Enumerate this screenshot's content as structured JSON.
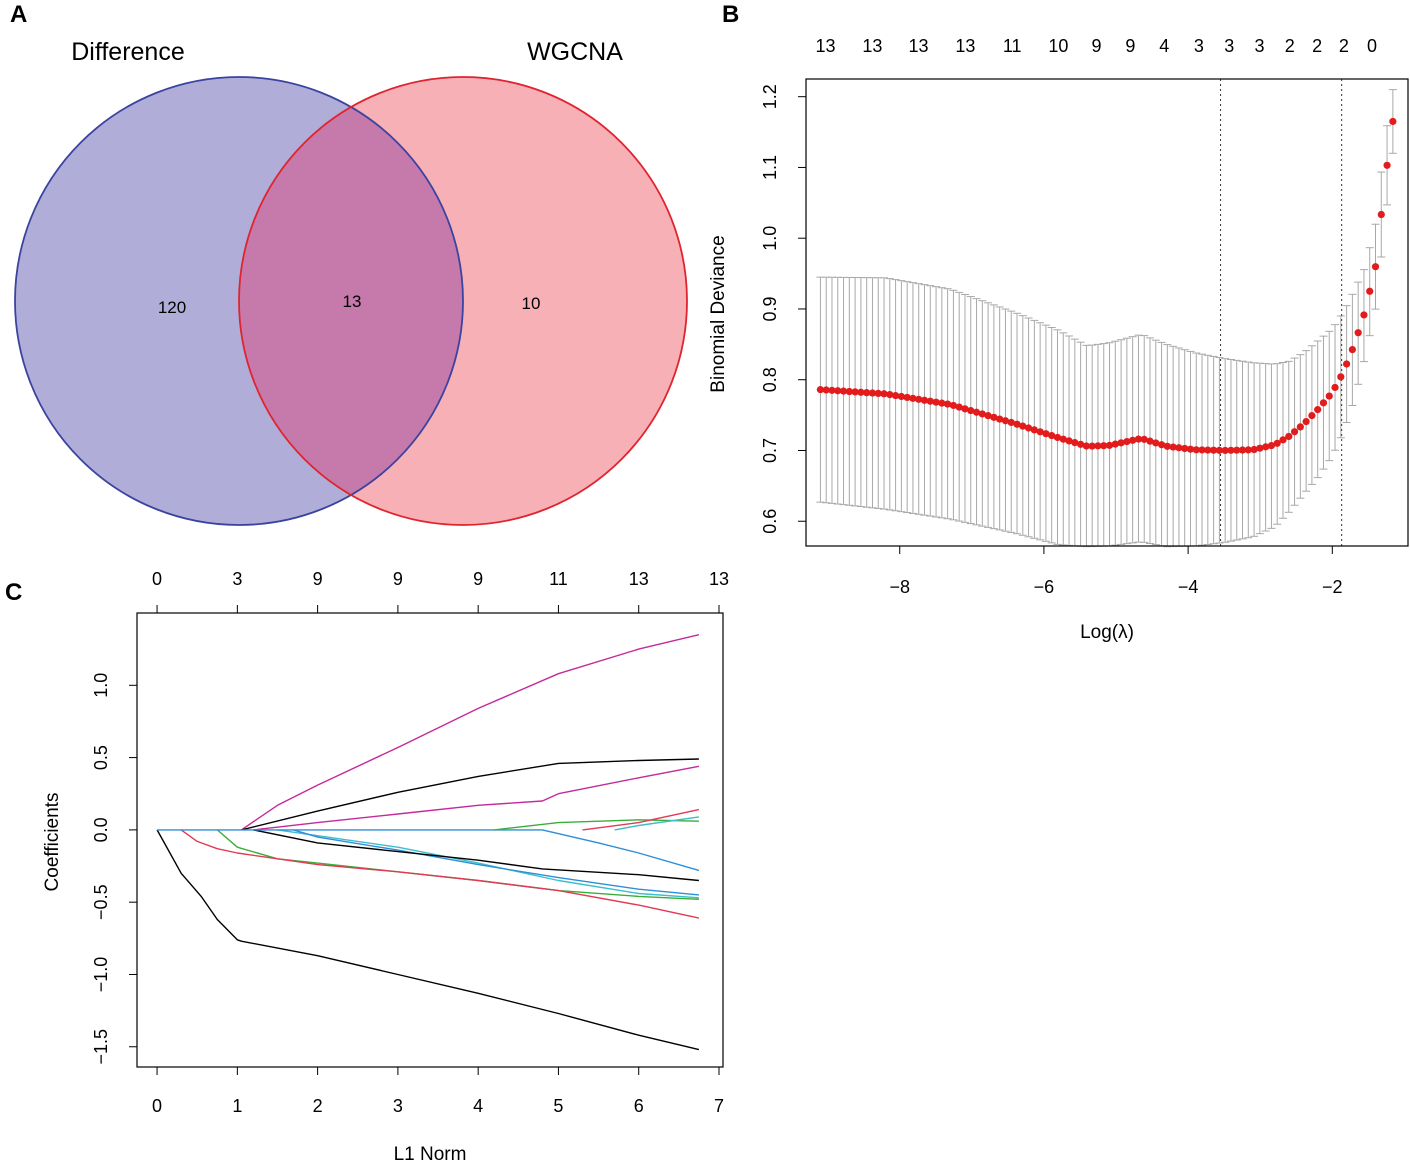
{
  "panels": {
    "a": "A",
    "b": "B",
    "c": "C"
  },
  "chart_data": [
    {
      "type": "venn",
      "sets": [
        {
          "name": "Difference",
          "color": "#8a88c6",
          "stroke": "#3b43a0"
        },
        {
          "name": "WGCNA",
          "color": "#f4868e",
          "stroke": "#e0242e"
        }
      ],
      "regions": {
        "only_a": "120",
        "both": "13",
        "only_b": "10"
      }
    },
    {
      "type": "scatter",
      "xlabel": "Log(λ)",
      "ylabel": "Binomial Deviance",
      "xlim": [
        -9.3,
        -0.95
      ],
      "ylim": [
        0.565,
        1.225
      ],
      "xticks": [
        -8,
        -6,
        -4,
        -2
      ],
      "xtick_labels": [
        "−8",
        "−6",
        "−4",
        "−2"
      ],
      "yticks": [
        0.6,
        0.7,
        0.8,
        0.9,
        1.0,
        1.1,
        1.2
      ],
      "ytick_labels": [
        "0.6",
        "0.7",
        "0.8",
        "0.9",
        "1.0",
        "1.1",
        "1.2"
      ],
      "top_axis": {
        "positions": [
          -9.03,
          -8.38,
          -7.74,
          -7.09,
          -6.44,
          -5.8,
          -5.27,
          -4.8,
          -4.33,
          -3.85,
          -3.43,
          -3.01,
          -2.59,
          -2.21,
          -1.84,
          -1.45
        ],
        "labels": [
          "13",
          "13",
          "13",
          "13",
          "11",
          "10",
          "9",
          "9",
          "4",
          "3",
          "3",
          "3",
          "2",
          "2",
          "2",
          "0"
        ]
      },
      "vlines": [
        -3.55,
        -1.87
      ],
      "point_color": "#e21c1c",
      "errorbar_color": "#a8a8a8",
      "series": [
        {
          "name": "mean",
          "x": [
            -9.1,
            -8.2,
            -7.3,
            -6.4,
            -5.8,
            -5.4,
            -5.1,
            -4.65,
            -4.3,
            -3.9,
            -3.5,
            -3.1,
            -2.8,
            -2.6,
            -2.4,
            -2.2,
            -2.0,
            -1.85,
            -1.7,
            -1.55,
            -1.4,
            -1.27,
            -1.16
          ],
          "y": [
            0.786,
            0.78,
            0.765,
            0.738,
            0.718,
            0.706,
            0.707,
            0.717,
            0.706,
            0.701,
            0.7,
            0.701,
            0.708,
            0.72,
            0.737,
            0.758,
            0.782,
            0.81,
            0.848,
            0.895,
            0.96,
            1.08,
            1.165
          ]
        },
        {
          "name": "upper",
          "x": [
            -9.1,
            -8.2,
            -7.3,
            -6.4,
            -5.8,
            -5.4,
            -5.1,
            -4.65,
            -4.3,
            -3.9,
            -3.5,
            -3.1,
            -2.8,
            -2.6,
            -2.4,
            -2.2,
            -2.0,
            -1.85,
            -1.7,
            -1.55,
            -1.4,
            -1.27,
            -1.16
          ],
          "y": [
            0.945,
            0.944,
            0.928,
            0.895,
            0.87,
            0.848,
            0.852,
            0.864,
            0.85,
            0.838,
            0.83,
            0.824,
            0.822,
            0.826,
            0.838,
            0.855,
            0.872,
            0.895,
            0.925,
            0.958,
            1.02,
            1.14,
            1.21
          ]
        },
        {
          "name": "lower",
          "x": [
            -9.1,
            -8.2,
            -7.3,
            -6.4,
            -5.8,
            -5.4,
            -5.1,
            -4.65,
            -4.3,
            -3.9,
            -3.5,
            -3.1,
            -2.8,
            -2.6,
            -2.4,
            -2.2,
            -2.0,
            -1.85,
            -1.7,
            -1.55,
            -1.4,
            -1.27,
            -1.16
          ],
          "y": [
            0.627,
            0.617,
            0.603,
            0.583,
            0.567,
            0.564,
            0.565,
            0.571,
            0.564,
            0.565,
            0.57,
            0.578,
            0.592,
            0.613,
            0.638,
            0.662,
            0.692,
            0.725,
            0.77,
            0.83,
            0.9,
            1.02,
            1.12
          ]
        }
      ]
    },
    {
      "type": "line",
      "xlabel": "L1 Norm",
      "ylabel": "Coefficients",
      "xlim": [
        -0.25,
        7.05
      ],
      "ylim": [
        -1.64,
        1.5
      ],
      "xticks": [
        0,
        1,
        2,
        3,
        4,
        5,
        6,
        7
      ],
      "xtick_labels": [
        "0",
        "1",
        "2",
        "3",
        "4",
        "5",
        "6",
        "7"
      ],
      "yticks": [
        -1.5,
        -1.0,
        -0.5,
        0.0,
        0.5,
        1.0
      ],
      "ytick_labels": [
        "−1.5",
        "−1.0",
        "−0.5",
        "0.0",
        "0.5",
        "1.0"
      ],
      "top_axis": {
        "positions": [
          0,
          1,
          2,
          3,
          4,
          5,
          6,
          7
        ],
        "labels": [
          "0",
          "3",
          "9",
          "9",
          "9",
          "11",
          "13",
          "13"
        ]
      },
      "series": [
        {
          "name": "black-neg-large",
          "color": "#000000",
          "x": [
            0,
            0.3,
            0.55,
            0.75,
            1.0,
            1.05,
            2.0,
            3.0,
            4.0,
            5.0,
            6.0,
            6.75
          ],
          "y": [
            0,
            -0.3,
            -0.46,
            -0.62,
            -0.76,
            -0.77,
            -0.87,
            -1.0,
            -1.13,
            -1.27,
            -1.42,
            -1.52
          ]
        },
        {
          "name": "magenta-top",
          "color": "#c42a9a",
          "x": [
            1.05,
            1.5,
            2.0,
            3.0,
            4.0,
            5.0,
            6.0,
            6.75
          ],
          "y": [
            0,
            0.17,
            0.31,
            0.57,
            0.84,
            1.08,
            1.25,
            1.35
          ]
        },
        {
          "name": "black-pos",
          "color": "#000000",
          "x": [
            1.05,
            2.0,
            3.0,
            4.0,
            5.0,
            6.0,
            6.75
          ],
          "y": [
            0,
            0.13,
            0.26,
            0.37,
            0.46,
            0.48,
            0.49
          ]
        },
        {
          "name": "magenta-mid",
          "color": "#c42a9a",
          "x": [
            1.2,
            2.0,
            3.0,
            4.0,
            4.8,
            5.0,
            6.0,
            6.75
          ],
          "y": [
            0,
            0.05,
            0.11,
            0.17,
            0.2,
            0.25,
            0.36,
            0.44
          ]
        },
        {
          "name": "green-neg",
          "color": "#3aae3a",
          "x": [
            0.75,
            1.0,
            1.5,
            2.0,
            3.0,
            4.0,
            5.0,
            6.0,
            6.75
          ],
          "y": [
            0,
            -0.12,
            -0.2,
            -0.23,
            -0.29,
            -0.35,
            -0.42,
            -0.46,
            -0.48
          ]
        },
        {
          "name": "red-neg",
          "color": "#e23a55",
          "x": [
            0.3,
            0.5,
            0.75,
            1.0,
            1.5,
            2.0,
            3.0,
            4.0,
            5.0,
            6.0,
            6.75
          ],
          "y": [
            0,
            -0.08,
            -0.13,
            -0.16,
            -0.2,
            -0.24,
            -0.29,
            -0.35,
            -0.42,
            -0.52,
            -0.61
          ]
        },
        {
          "name": "cyan-neg",
          "color": "#3cbecb",
          "x": [
            1.5,
            2.0,
            3.0,
            4.0,
            5.0,
            6.0,
            6.75
          ],
          "y": [
            0,
            -0.04,
            -0.12,
            -0.23,
            -0.35,
            -0.44,
            -0.47
          ]
        },
        {
          "name": "blue-neg",
          "color": "#2e8ed8",
          "x": [
            1.7,
            2.0,
            3.0,
            4.0,
            5.0,
            6.0,
            6.75
          ],
          "y": [
            0,
            -0.05,
            -0.14,
            -0.24,
            -0.33,
            -0.41,
            -0.45
          ]
        },
        {
          "name": "black-neg-small",
          "color": "#000000",
          "x": [
            1.2,
            2.0,
            3.0,
            4.0,
            4.8,
            6.0,
            6.75
          ],
          "y": [
            0,
            -0.09,
            -0.15,
            -0.21,
            -0.27,
            -0.31,
            -0.35
          ]
        },
        {
          "name": "blue-late",
          "color": "#2e8ed8",
          "x": [
            0,
            4.8,
            5.5,
            6.0,
            6.75
          ],
          "y": [
            0,
            0,
            -0.09,
            -0.16,
            -0.28
          ]
        },
        {
          "name": "green-pos",
          "color": "#3aae3a",
          "x": [
            4.2,
            5.0,
            6.0,
            6.75
          ],
          "y": [
            0,
            0.05,
            0.07,
            0.06
          ]
        },
        {
          "name": "red-pos",
          "color": "#e23a55",
          "x": [
            5.3,
            6.0,
            6.75
          ],
          "y": [
            0,
            0.05,
            0.14
          ]
        },
        {
          "name": "cyan-pos",
          "color": "#3cbecb",
          "x": [
            5.7,
            6.0,
            6.75
          ],
          "y": [
            0,
            0.03,
            0.09
          ]
        }
      ]
    }
  ]
}
